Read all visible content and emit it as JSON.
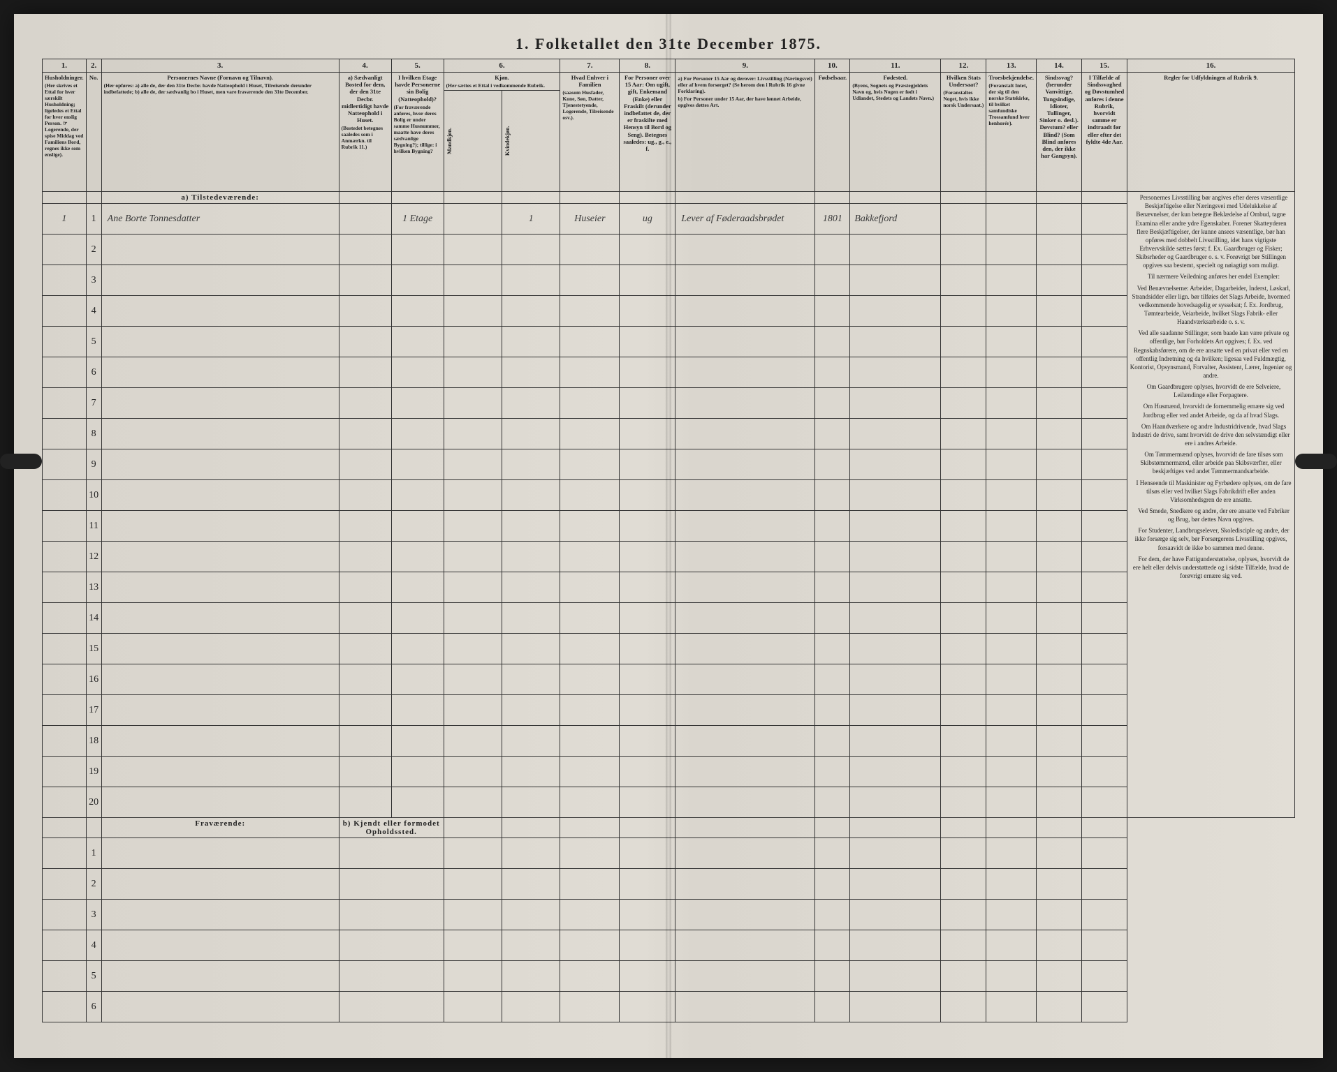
{
  "title": "1. Folketallet den 31te December 1875.",
  "columns": {
    "nums": [
      "1.",
      "2.",
      "3.",
      "4.",
      "5.",
      "6.",
      "7.",
      "8.",
      "9.",
      "10.",
      "11.",
      "12.",
      "13.",
      "14.",
      "15.",
      "16."
    ],
    "h1": "Husholdninger.",
    "h1_sub": "(Her skrives et Ettal for hver særskilt Husholdning; ligeledes et Ettal for hver enslig Person.\n☞ Logerende, der spise Middag ved Familiens Bord, regnes ikke som enslige).",
    "h2": "No.",
    "h3": "Personernes Navne (Fornavn og Tilnavn).",
    "h3_sub": "(Her opføres:\na) alle de, der den 31te Decbr. havde Natteophold i Huset, Tilreisende derunder indbefattede;\nb) alle de, der sædvanlig bo i Huset, men vare fraværende den 31te December.",
    "h4": "a) Sædvanligt Bosted for dem, der den 31te Decbr. midlertidigt havde Natteophold i Huset.",
    "h4_sub": "(Bostedet betegnes saaledes som i Anmærkn. til Rubrik 11.)",
    "h5": "I hvilken Etage havde Personerne sin Bolig (Natteophold)?",
    "h5_sub": "(For fraværende anføres, hvor deres Bolig er under samme Husnummer, maatte have deres sædvanlige Bygning?); tillige: i hvilken Bygning?",
    "h6": "Kjøn.",
    "h6_sub": "(Her sættes et Ettal i vedkommende Rubrik.",
    "h6a": "Mandkjøn.",
    "h6b": "Kvindekjøn.",
    "h7": "Hvad Enhver i Familien",
    "h7_sub": "(saasom Husfader, Kone, Søn, Datter, Tjenestetyende, Logerende, Tilreisende osv.).",
    "h8": "For Personer over 15 Aar: Om ugift, gift, Enkemand (Enke) eller Fraskilt (derunder indbefattet de, der er fraskilte med Hensyn til Bord og Seng). Betegnes saaledes: ug., g., e., f.",
    "h9a": "a) For Personer 15 Aar og derover: Livsstilling (Næringsvei) eller af hvem forsørget? (Se herom den i Rubrik 16 givne Forklaring).",
    "h9b": "b) For Personer under 15 Aar, der have lønnet Arbeide, opgives dettes Art.",
    "h10": "Fødselsaar.",
    "h11": "Fødested.",
    "h11_sub": "(Byens, Sognets og Præstegjeldets Navn og, hvis Nogen er født i Udlandet, Stedets og Landets Navn.)",
    "h12": "Hvilken Stats Undersaat?",
    "h12_sub": "(Foranstaltes Noget, hvis ikke norsk Undersaat.)",
    "h13": "Troesbekjendelse.",
    "h13_sub": "(Foranstalt Intet, der sig til den norske Statskirke, til hvilket samfundiske Trossamfund hver henhorér).",
    "h14": "Sindssvag? (herunder Vanvittige, Tungsindige, Idioter, Tullinger, Sinker o. desl.). Døvstum? eller Blind? (Som Blind anføres den, der ikke har Gangsyn).",
    "h15": "I Tilfælde af Sindssvaghed og Døvstumhed anføres i denne Rubrik, hvorvidt samme er indtraadt før eller efter det fyldte 4de Aar.",
    "h16": "Regler for Udfyldningen\naf\nRubrik 9."
  },
  "sections": {
    "present": "a) Tilstedeværende:",
    "absent": "Fraværende:",
    "absent_b": "b) Kjendt eller formodet Opholdssted."
  },
  "rows_present": [
    {
      "n": "1",
      "hh": "1",
      "name": "Ane Borte Tonnesdatter",
      "col4": "",
      "col5": "1 Etage",
      "col6b": "1",
      "col7": "Huseier",
      "col8": "ug",
      "col9": "Lever af Føderaadsbrødet",
      "col10": "1801",
      "col11": "Bakkefjord",
      "col12": "",
      "col13": "",
      "col14": "",
      "col15": ""
    },
    {
      "n": "2"
    },
    {
      "n": "3"
    },
    {
      "n": "4"
    },
    {
      "n": "5"
    },
    {
      "n": "6"
    },
    {
      "n": "7"
    },
    {
      "n": "8"
    },
    {
      "n": "9"
    },
    {
      "n": "10"
    },
    {
      "n": "11"
    },
    {
      "n": "12"
    },
    {
      "n": "13"
    },
    {
      "n": "14"
    },
    {
      "n": "15"
    },
    {
      "n": "16"
    },
    {
      "n": "17"
    },
    {
      "n": "18"
    },
    {
      "n": "19"
    },
    {
      "n": "20"
    }
  ],
  "rows_absent": [
    {
      "n": "1"
    },
    {
      "n": "2"
    },
    {
      "n": "3"
    },
    {
      "n": "4"
    },
    {
      "n": "5"
    },
    {
      "n": "6"
    }
  ],
  "instructions": {
    "p1": "Personernes Livsstilling bør angives efter deres væsentlige Beskjæftigelse eller Næringsvei med Udelukkelse af Benævnelser, der kun betegne Beklædelse af Ombud, tagne Examina eller andre ydre Egenskaber. Forener Skatteyderen flere Beskjæftigelser, der kunne ansees væsentlige, bør han opføres med dobbelt Livsstilling, idet hans vigtigste Erhvervskilde sættes først; f. Ex. Gaardbruger og Fisker; Skibsrheder og Gaardbruger o. s. v. Forøvrigt bør Stillingen opgives saa bestemt, specielt og nøiagtigt som muligt.",
    "p2": "Til nærmere Veiledning anføres her endel Exempler:",
    "p3": "Ved Benævnelserne: Arbeider, Dagarbeider, Inderst, Løskarl, Strandsidder eller lign. bør tilføies det Slags Arbeide, hvormed vedkommende hovedsagelig er sysselsat; f. Ex. Jordbrug, Tømtearbeide, Veiarbeide, hvilket Slags Fabrik- eller Haandværksarbeide o. s. v.",
    "p4": "Ved alle saadanne Stillinger, som baade kan være private og offentlige, bør Forholdets Art opgives; f. Ex. ved Regnskabsførere, om de ere ansatte ved en privat eller ved en offentlig Indretning og da hvilken; ligesaa ved Fuldmægtig, Kontorist, Opsynsmand, Forvalter, Assistent, Lærer, Ingeniør og andre.",
    "p5": "Om Gaardbrugere oplyses, hvorvidt de ere Selveiere, Leilændinge eller Forpagtere.",
    "p6": "Om Husmænd, hvorvidt de fornemmelig ernære sig ved Jordbrug eller ved andet Arbeide, og da af hvad Slags.",
    "p7": "Om Haandværkere og andre Industridrivende, hvad Slags Industri de drive, samt hvorvidt de drive den selvstændigt eller ere i andres Arbeide.",
    "p8": "Om Tømmermænd oplyses, hvorvidt de fare tilsøs som Skibstømmermænd, eller arbeide paa Skibsværfter, eller beskjæftiges ved andet Tømmermandsarbeide.",
    "p9": "I Henseende til Maskinister og Fyrbødere oplyses, om de fare tilsøs eller ved hvilket Slags Fabrikdrift eller anden Virksomhedsgren de ere ansatte.",
    "p10": "Ved Smede, Snedkere og andre, der ere ansatte ved Fabriker og Brug, bør dettes Navn opgives.",
    "p11": "For Studenter, Landbrugselever, Skoledisciple og andre, der ikke forsørge sig selv, bør Forsørgerens Livsstilling opgives, forsaavidt de ikke bo sammen med denne.",
    "p12": "For dem, der have Fattigunderstøttelse, oplyses, hvorvidt de ere helt eller delvis understøttede og i sidste Tilfælde, hvad de forøvrigt ernære sig ved."
  },
  "colors": {
    "paper": "#e0dcd4",
    "ink": "#222222",
    "rule": "#333333"
  }
}
